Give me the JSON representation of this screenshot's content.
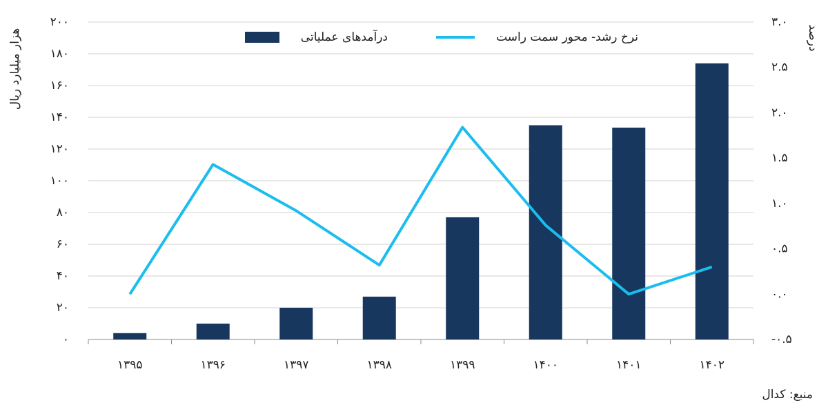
{
  "chart_data": {
    "type": "bar",
    "categories": [
      "۱۳۹۵",
      "۱۳۹۶",
      "۱۳۹۷",
      "۱۳۹۸",
      "۱۳۹۹",
      "۱۴۰۰",
      "۱۴۰۱",
      "۱۴۰۲"
    ],
    "series": [
      {
        "name": "درآمدهای عملیاتی",
        "type": "bar",
        "color": "#17375e",
        "values": [
          4,
          10,
          20,
          27,
          77,
          135,
          133.5,
          174
        ]
      },
      {
        "name": "نرخ رشد- محور سمت راست",
        "type": "line",
        "axis": "y2",
        "color": "#1bbdee",
        "values": [
          0.0,
          1.43,
          0.92,
          0.32,
          1.84,
          0.76,
          0.0,
          0.3
        ]
      }
    ],
    "ylabel": "هزار میلیارد ریال",
    "y2label": "درصد",
    "source": "منبع: کدال",
    "ylim": [
      0,
      200
    ],
    "yticks": [
      {
        "value": 0,
        "label": "۰"
      },
      {
        "value": 20,
        "label": "۲۰"
      },
      {
        "value": 40,
        "label": "۴۰"
      },
      {
        "value": 60,
        "label": "۶۰"
      },
      {
        "value": 80,
        "label": "۸۰"
      },
      {
        "value": 100,
        "label": "۱۰۰"
      },
      {
        "value": 120,
        "label": "۱۲۰"
      },
      {
        "value": 140,
        "label": "۱۴۰"
      },
      {
        "value": 160,
        "label": "۱۶۰"
      },
      {
        "value": 180,
        "label": "۱۸۰"
      },
      {
        "value": 200,
        "label": "۲۰۰"
      }
    ],
    "y2lim": [
      -0.5,
      3.0
    ],
    "y2ticks": [
      {
        "value": -0.5,
        "label": "-۰.۵"
      },
      {
        "value": 0.0,
        "label": "۰.۰"
      },
      {
        "value": 0.5,
        "label": "۰.۵"
      },
      {
        "value": 1.0,
        "label": "۱.۰"
      },
      {
        "value": 1.5,
        "label": "۱.۵"
      },
      {
        "value": 2.0,
        "label": "۲.۰"
      },
      {
        "value": 2.5,
        "label": "۲.۵"
      },
      {
        "value": 3.0,
        "label": "۳.۰"
      }
    ],
    "grid": true
  }
}
